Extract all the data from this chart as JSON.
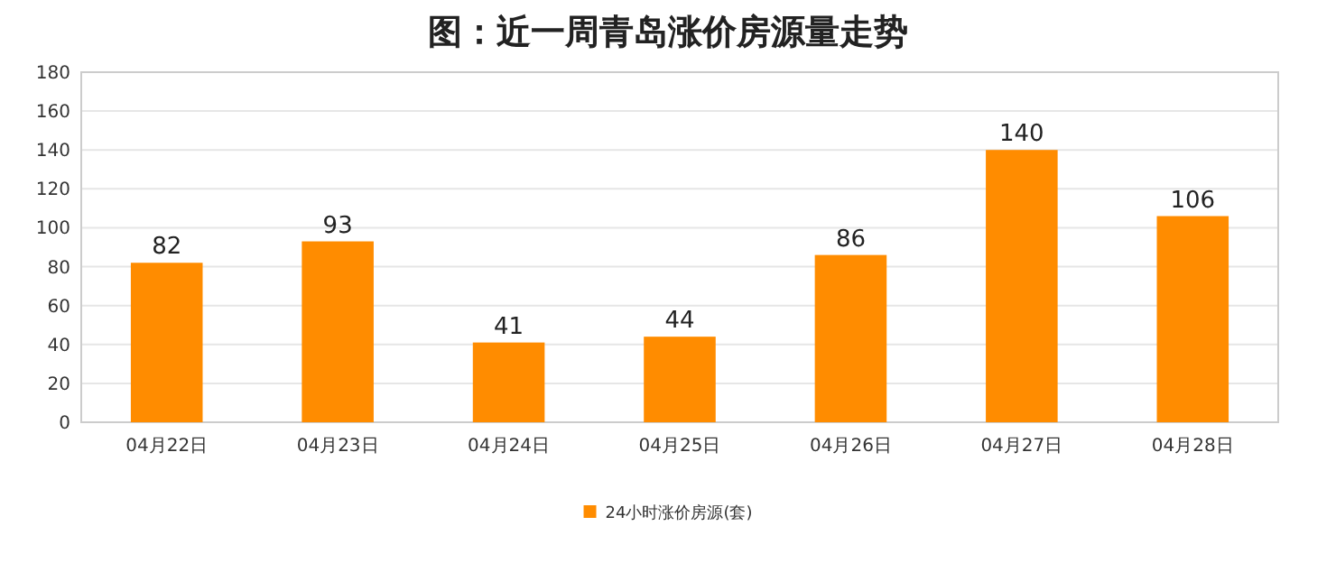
{
  "chart_data": {
    "type": "bar",
    "title": "图：近一周青岛涨价房源量走势",
    "categories": [
      "04月22日",
      "04月23日",
      "04月24日",
      "04月25日",
      "04月26日",
      "04月27日",
      "04月28日"
    ],
    "series": [
      {
        "name": "24小时涨价房源(套)",
        "color": "#ff8c00",
        "values": [
          82,
          93,
          41,
          44,
          86,
          140,
          106
        ]
      }
    ],
    "ylim": [
      0,
      180
    ],
    "yticks": [
      0,
      20,
      40,
      60,
      80,
      100,
      120,
      140,
      160,
      180
    ],
    "grid": "y",
    "legend": "bottom",
    "data_labels": true
  }
}
